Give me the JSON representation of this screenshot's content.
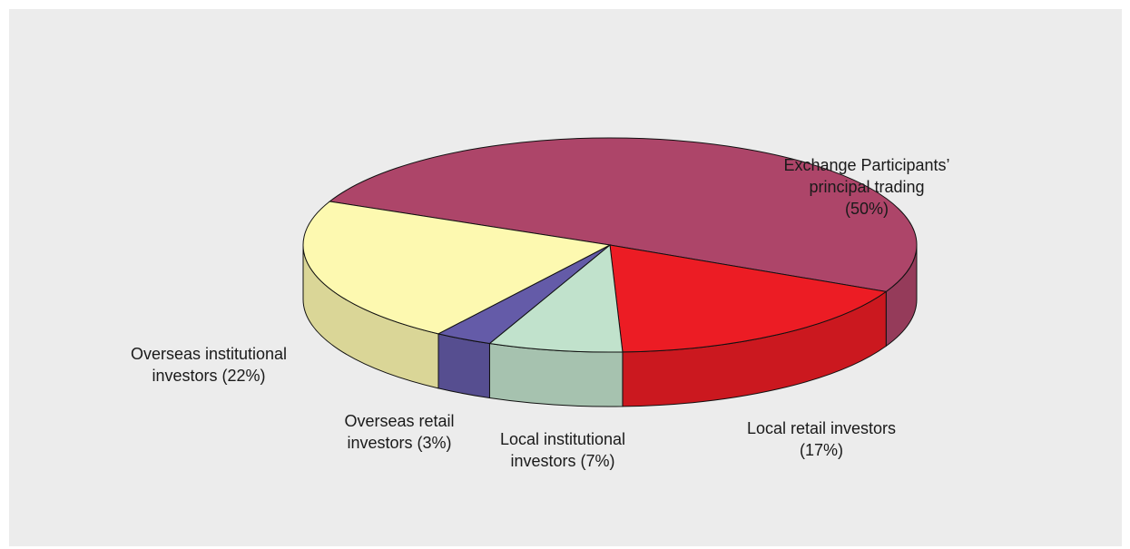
{
  "chart_data": {
    "type": "pie",
    "title": "",
    "slices": [
      {
        "key": "exchange",
        "label_lines": [
          "Exchange Participants’",
          "principal trading",
          "(50%)"
        ],
        "value": 50,
        "color": "#ad4569"
      },
      {
        "key": "local_retail",
        "label_lines": [
          "Local retail investors",
          "(17%)"
        ],
        "value": 17,
        "color": "#ec1c24"
      },
      {
        "key": "local_inst",
        "label_lines": [
          "Local institutional",
          "investors (7%)"
        ],
        "value": 7,
        "color": "#c1e2cc"
      },
      {
        "key": "overseas_retail",
        "label_lines": [
          "Overseas retail",
          "investors (3%)"
        ],
        "value": 3,
        "color": "#645ba8"
      },
      {
        "key": "overseas_inst",
        "label_lines": [
          "Overseas institutional",
          "investors (22%)"
        ],
        "value": 22,
        "color": "#fdf9b0"
      }
    ],
    "legend": "none",
    "rendering": "3d-tilted"
  }
}
